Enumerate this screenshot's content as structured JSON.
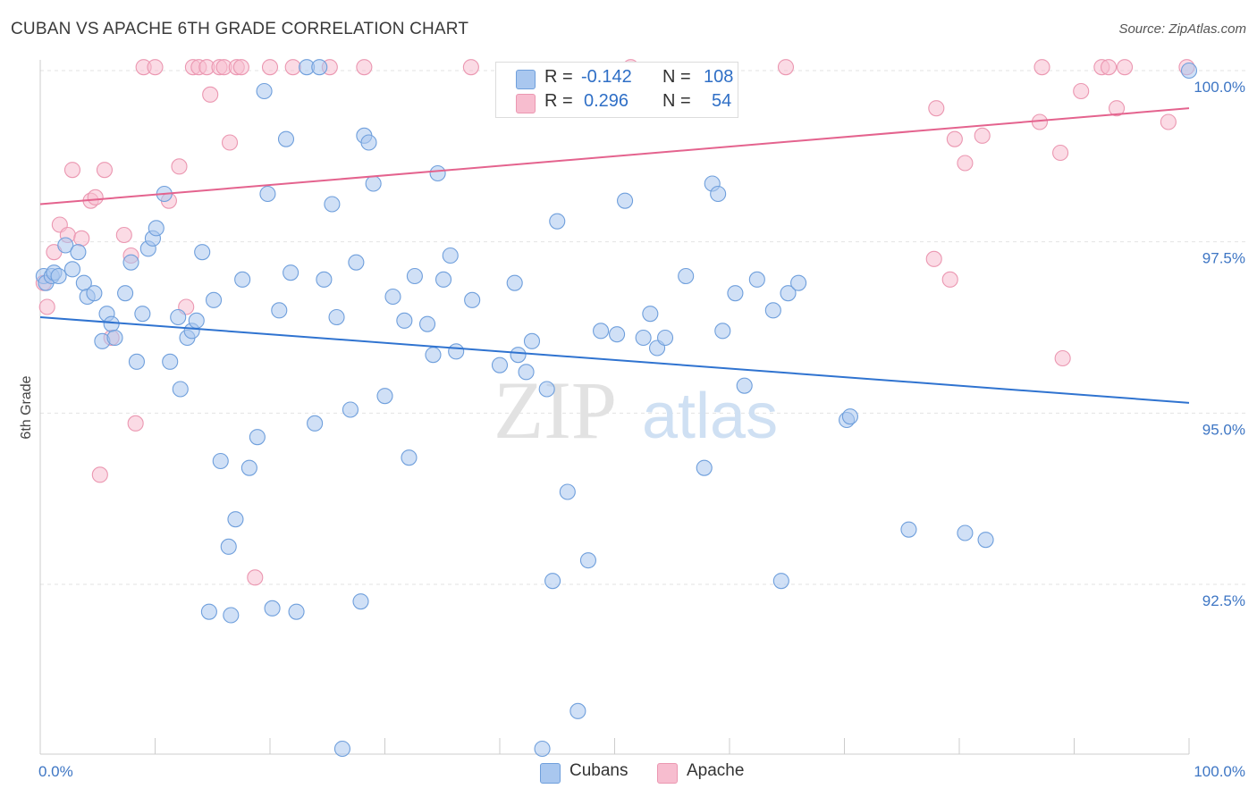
{
  "header": {
    "title": "CUBAN VS APACHE 6TH GRADE CORRELATION CHART",
    "source": "Source: ZipAtlas.com"
  },
  "legend": {
    "rows": [
      {
        "label_r": "R =",
        "r": "-0.142",
        "label_n": "N =",
        "n": "108"
      },
      {
        "label_r": "R =",
        "r": "0.296",
        "label_n": "N =",
        "n": "54"
      }
    ],
    "bottom": [
      {
        "label": "Cubans"
      },
      {
        "label": "Apache"
      }
    ]
  },
  "watermark": {
    "zip": "ZIP",
    "atlas": "atlas"
  },
  "colors": {
    "cubans_fill": "#a9c7ef",
    "cubans_stroke": "#6f9fdc",
    "cubans_line": "#2f73d0",
    "apache_fill": "#f7bdcf",
    "apache_stroke": "#eb97b1",
    "apache_line": "#e4638e",
    "tick_text": "#3e76c4"
  },
  "chart_data": {
    "type": "scatter",
    "title": "CUBAN VS APACHE 6TH GRADE CORRELATION CHART",
    "xlabel": "",
    "ylabel": "6th Grade",
    "xlim": [
      0,
      100
    ],
    "ylim": [
      90.0,
      100.5
    ],
    "x_tick_labels": [
      "0.0%",
      "100.0%"
    ],
    "y_ticks": [
      {
        "value": 100.0,
        "label": "100.0%"
      },
      {
        "value": 97.5,
        "label": "97.5%"
      },
      {
        "value": 95.0,
        "label": "95.0%"
      },
      {
        "value": 92.5,
        "label": "92.5%"
      }
    ],
    "series": [
      {
        "name": "Cubans",
        "trend": {
          "x": [
            0,
            100
          ],
          "y": [
            96.4,
            95.15
          ]
        },
        "points": [
          [
            0.3,
            97.0
          ],
          [
            0.5,
            96.9
          ],
          [
            1.0,
            97.0
          ],
          [
            1.2,
            97.05
          ],
          [
            1.6,
            97.0
          ],
          [
            2.2,
            97.45
          ],
          [
            2.8,
            97.1
          ],
          [
            3.3,
            97.35
          ],
          [
            3.8,
            96.9
          ],
          [
            4.1,
            96.7
          ],
          [
            4.7,
            96.75
          ],
          [
            5.4,
            96.05
          ],
          [
            5.8,
            96.45
          ],
          [
            6.2,
            96.3
          ],
          [
            6.5,
            96.1
          ],
          [
            7.4,
            96.75
          ],
          [
            7.9,
            97.2
          ],
          [
            8.4,
            95.75
          ],
          [
            8.9,
            96.45
          ],
          [
            9.4,
            97.4
          ],
          [
            9.8,
            97.55
          ],
          [
            10.1,
            97.7
          ],
          [
            10.8,
            98.2
          ],
          [
            11.3,
            95.75
          ],
          [
            12.0,
            96.4
          ],
          [
            12.2,
            95.35
          ],
          [
            12.8,
            96.1
          ],
          [
            13.2,
            96.2
          ],
          [
            13.6,
            96.35
          ],
          [
            14.1,
            97.35
          ],
          [
            14.7,
            92.1
          ],
          [
            15.1,
            96.65
          ],
          [
            15.7,
            94.3
          ],
          [
            16.4,
            93.05
          ],
          [
            16.6,
            92.05
          ],
          [
            17.0,
            93.45
          ],
          [
            17.6,
            96.95
          ],
          [
            18.2,
            94.2
          ],
          [
            18.9,
            94.65
          ],
          [
            19.5,
            99.7
          ],
          [
            19.8,
            98.2
          ],
          [
            20.2,
            92.15
          ],
          [
            20.8,
            96.5
          ],
          [
            21.4,
            99.0
          ],
          [
            21.8,
            97.05
          ],
          [
            22.3,
            92.1
          ],
          [
            23.2,
            100.05
          ],
          [
            23.9,
            94.85
          ],
          [
            24.3,
            100.05
          ],
          [
            24.7,
            96.95
          ],
          [
            25.4,
            98.05
          ],
          [
            25.8,
            96.4
          ],
          [
            26.3,
            90.1
          ],
          [
            27.0,
            95.05
          ],
          [
            27.5,
            97.2
          ],
          [
            27.9,
            92.25
          ],
          [
            28.2,
            99.05
          ],
          [
            28.6,
            98.95
          ],
          [
            29.0,
            98.35
          ],
          [
            30.0,
            95.25
          ],
          [
            30.7,
            96.7
          ],
          [
            31.7,
            96.35
          ],
          [
            32.1,
            94.35
          ],
          [
            32.6,
            97.0
          ],
          [
            33.7,
            96.3
          ],
          [
            34.2,
            95.85
          ],
          [
            34.6,
            98.5
          ],
          [
            35.1,
            96.95
          ],
          [
            35.7,
            97.3
          ],
          [
            36.2,
            95.9
          ],
          [
            37.6,
            96.65
          ],
          [
            40.0,
            95.7
          ],
          [
            41.3,
            96.9
          ],
          [
            41.6,
            95.85
          ],
          [
            42.3,
            95.6
          ],
          [
            42.8,
            96.05
          ],
          [
            43.7,
            90.1
          ],
          [
            44.1,
            95.35
          ],
          [
            44.6,
            92.55
          ],
          [
            45.0,
            97.8
          ],
          [
            45.9,
            93.85
          ],
          [
            46.8,
            90.65
          ],
          [
            47.7,
            92.85
          ],
          [
            48.8,
            96.2
          ],
          [
            50.2,
            96.15
          ],
          [
            50.9,
            98.1
          ],
          [
            52.5,
            96.1
          ],
          [
            53.1,
            96.45
          ],
          [
            53.7,
            95.95
          ],
          [
            54.4,
            96.1
          ],
          [
            56.2,
            97.0
          ],
          [
            57.8,
            94.2
          ],
          [
            58.5,
            98.35
          ],
          [
            59.0,
            98.2
          ],
          [
            59.4,
            96.2
          ],
          [
            60.5,
            96.75
          ],
          [
            61.3,
            95.4
          ],
          [
            62.4,
            96.95
          ],
          [
            63.8,
            96.5
          ],
          [
            64.5,
            92.55
          ],
          [
            65.1,
            96.75
          ],
          [
            66.0,
            96.9
          ],
          [
            70.2,
            94.9
          ],
          [
            70.5,
            94.95
          ],
          [
            75.6,
            93.3
          ],
          [
            80.5,
            93.25
          ],
          [
            82.3,
            93.15
          ],
          [
            100.0,
            100.0
          ]
        ]
      },
      {
        "name": "Apache",
        "trend": {
          "x": [
            0,
            100
          ],
          "y": [
            98.05,
            99.45
          ]
        },
        "points": [
          [
            0.3,
            96.9
          ],
          [
            0.6,
            96.55
          ],
          [
            1.2,
            97.35
          ],
          [
            1.7,
            97.75
          ],
          [
            2.4,
            97.6
          ],
          [
            2.8,
            98.55
          ],
          [
            3.6,
            97.55
          ],
          [
            4.4,
            98.1
          ],
          [
            4.8,
            98.15
          ],
          [
            5.2,
            94.1
          ],
          [
            5.6,
            98.55
          ],
          [
            6.2,
            96.1
          ],
          [
            7.3,
            97.6
          ],
          [
            7.9,
            97.3
          ],
          [
            8.3,
            94.85
          ],
          [
            9.0,
            100.05
          ],
          [
            10.0,
            100.05
          ],
          [
            11.2,
            98.1
          ],
          [
            12.1,
            98.6
          ],
          [
            12.7,
            96.55
          ],
          [
            13.3,
            100.05
          ],
          [
            13.8,
            100.05
          ],
          [
            14.5,
            100.05
          ],
          [
            14.8,
            99.65
          ],
          [
            15.6,
            100.05
          ],
          [
            16.0,
            100.05
          ],
          [
            16.5,
            98.95
          ],
          [
            17.1,
            100.05
          ],
          [
            17.5,
            100.05
          ],
          [
            18.7,
            92.6
          ],
          [
            20.0,
            100.05
          ],
          [
            22.0,
            100.05
          ],
          [
            25.2,
            100.05
          ],
          [
            28.2,
            100.05
          ],
          [
            37.5,
            100.05
          ],
          [
            51.4,
            100.05
          ],
          [
            64.9,
            100.05
          ],
          [
            77.8,
            97.25
          ],
          [
            78.0,
            99.45
          ],
          [
            79.2,
            96.95
          ],
          [
            79.6,
            99.0
          ],
          [
            80.5,
            98.65
          ],
          [
            82.0,
            99.05
          ],
          [
            87.2,
            100.05
          ],
          [
            87.0,
            99.25
          ],
          [
            88.8,
            98.8
          ],
          [
            89.0,
            95.8
          ],
          [
            90.6,
            99.7
          ],
          [
            92.4,
            100.05
          ],
          [
            93.0,
            100.05
          ],
          [
            93.7,
            99.45
          ],
          [
            94.4,
            100.05
          ],
          [
            98.2,
            99.25
          ],
          [
            99.8,
            100.05
          ]
        ]
      }
    ]
  }
}
